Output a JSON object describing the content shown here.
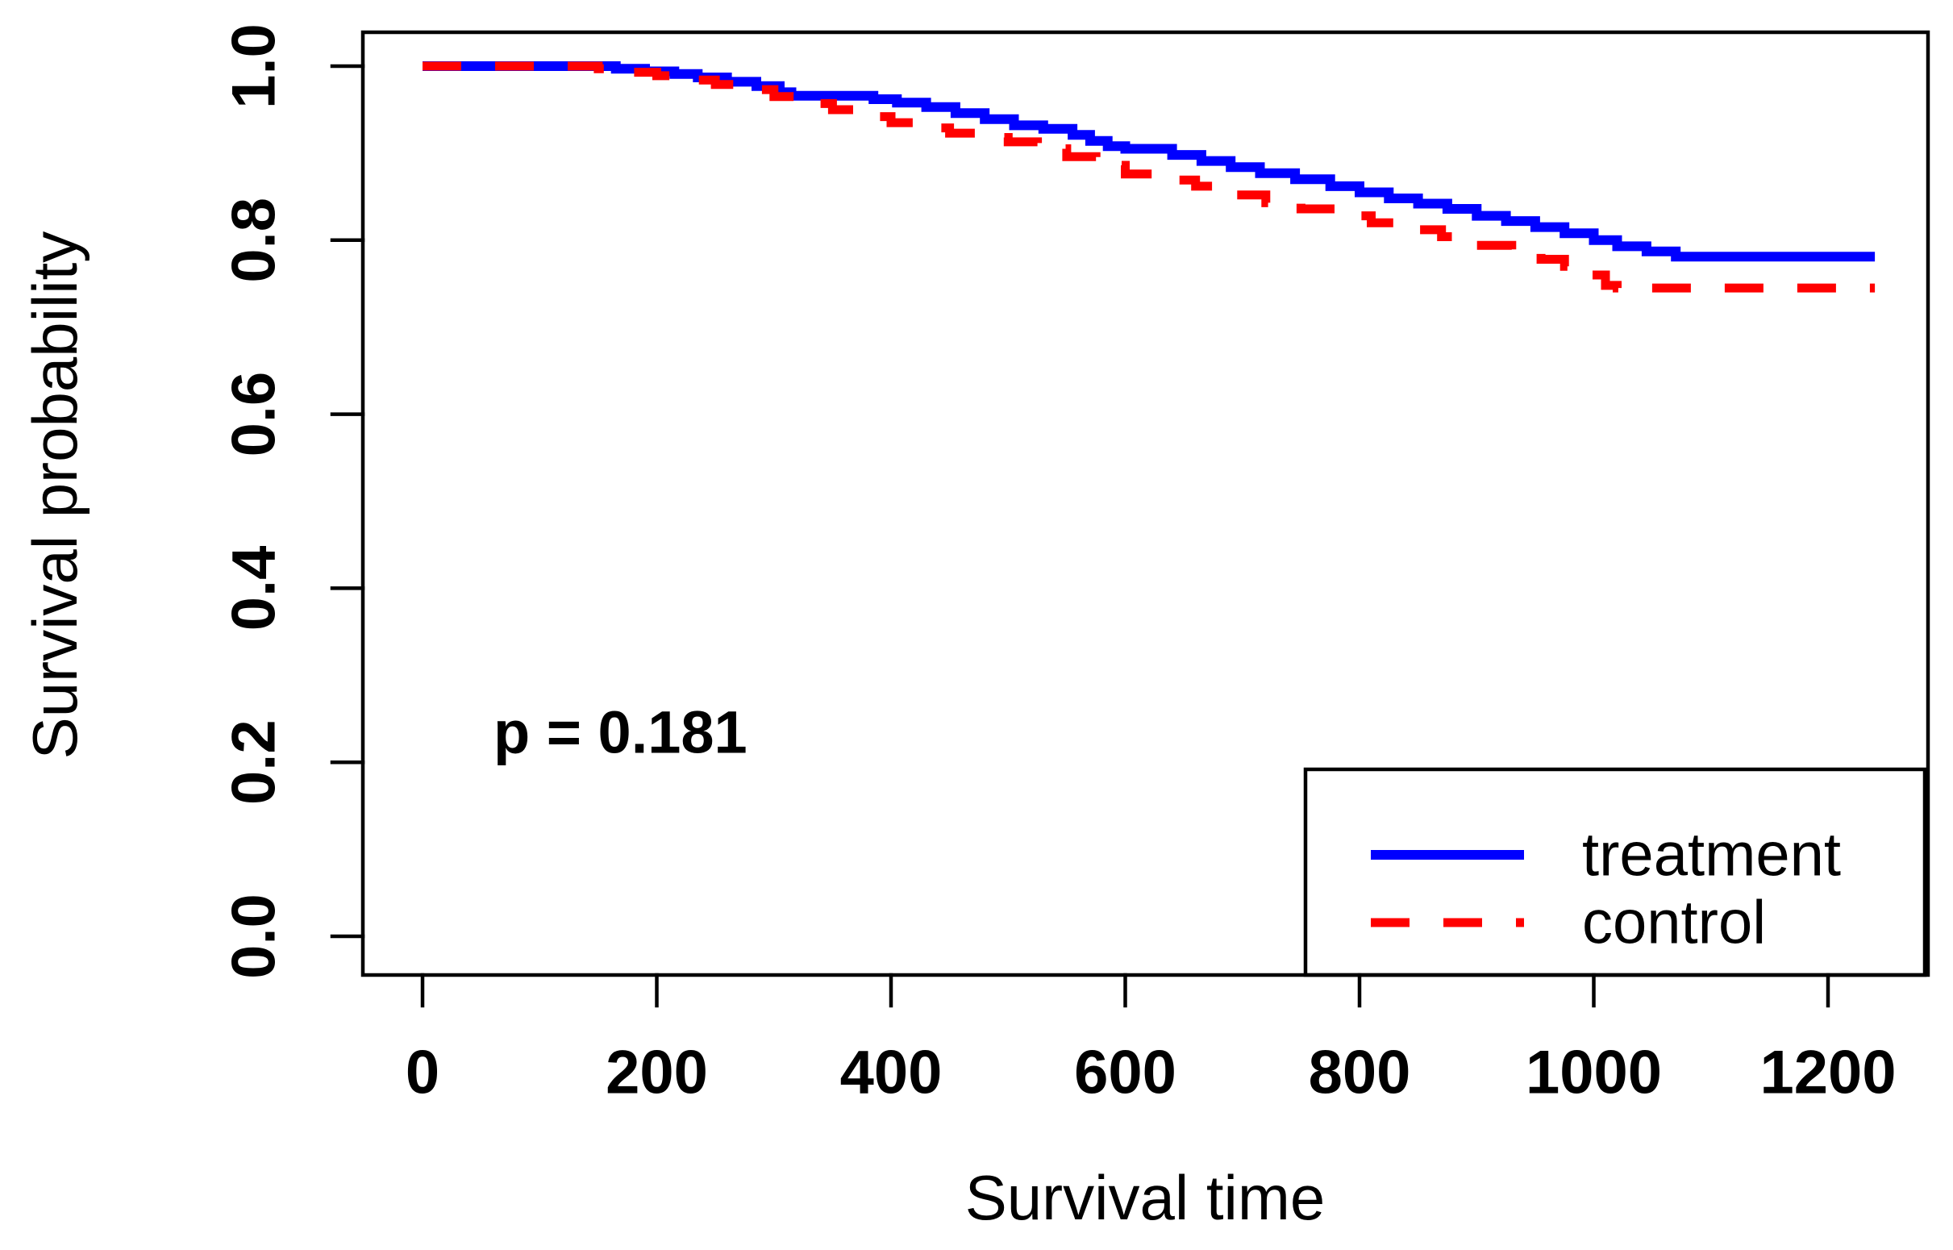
{
  "figure": {
    "background_color": "#ffffff",
    "axis_color": "#000000",
    "p_annotation": "p = 0.181",
    "p_value": 0.181
  },
  "chart_data": {
    "type": "line",
    "subtype": "kaplan-meier-step",
    "title": "",
    "xlabel": "Survival time",
    "ylabel": "Survival probability",
    "xlim": [
      0,
      1285
    ],
    "ylim": [
      0.0,
      1.0
    ],
    "grid": false,
    "x_ticks": [
      "0",
      "200",
      "400",
      "600",
      "800",
      "1000",
      "1200"
    ],
    "x_tick_values": [
      0,
      200,
      400,
      600,
      800,
      1000,
      1200
    ],
    "y_ticks": [
      "0.0",
      "0.2",
      "0.4",
      "0.6",
      "0.8",
      "1.0"
    ],
    "y_tick_values": [
      0,
      0.2,
      0.4,
      0.6,
      0.8,
      1.0
    ],
    "legend_position": "bottom-right",
    "annotation": {
      "text": "p = 0.181",
      "x": 230,
      "y": 0.23
    },
    "series": [
      {
        "name": "treatment",
        "color": "#0000ff",
        "line_style": "solid",
        "final_value": 0.781,
        "points": [
          [
            0,
            1.0
          ],
          [
            165,
            0.997
          ],
          [
            190,
            0.994
          ],
          [
            215,
            0.991
          ],
          [
            235,
            0.987
          ],
          [
            260,
            0.982
          ],
          [
            285,
            0.977
          ],
          [
            305,
            0.97
          ],
          [
            315,
            0.966
          ],
          [
            385,
            0.962
          ],
          [
            405,
            0.958
          ],
          [
            430,
            0.953
          ],
          [
            455,
            0.946
          ],
          [
            480,
            0.939
          ],
          [
            505,
            0.932
          ],
          [
            530,
            0.928
          ],
          [
            555,
            0.921
          ],
          [
            570,
            0.914
          ],
          [
            585,
            0.908
          ],
          [
            600,
            0.905
          ],
          [
            640,
            0.898
          ],
          [
            665,
            0.891
          ],
          [
            690,
            0.884
          ],
          [
            715,
            0.877
          ],
          [
            745,
            0.87
          ],
          [
            775,
            0.862
          ],
          [
            800,
            0.855
          ],
          [
            825,
            0.848
          ],
          [
            850,
            0.842
          ],
          [
            875,
            0.836
          ],
          [
            900,
            0.828
          ],
          [
            925,
            0.822
          ],
          [
            950,
            0.815
          ],
          [
            975,
            0.808
          ],
          [
            1000,
            0.8
          ],
          [
            1020,
            0.793
          ],
          [
            1045,
            0.787
          ],
          [
            1070,
            0.781
          ],
          [
            1240,
            0.781
          ]
        ]
      },
      {
        "name": "control",
        "color": "#ff0000",
        "line_style": "dashed",
        "final_value": 0.745,
        "points": [
          [
            0,
            1.0
          ],
          [
            150,
            0.997
          ],
          [
            175,
            0.993
          ],
          [
            200,
            0.989
          ],
          [
            225,
            0.984
          ],
          [
            250,
            0.979
          ],
          [
            275,
            0.973
          ],
          [
            300,
            0.965
          ],
          [
            325,
            0.957
          ],
          [
            350,
            0.95
          ],
          [
            375,
            0.942
          ],
          [
            400,
            0.935
          ],
          [
            425,
            0.929
          ],
          [
            450,
            0.923
          ],
          [
            475,
            0.918
          ],
          [
            500,
            0.913
          ],
          [
            525,
            0.905
          ],
          [
            550,
            0.896
          ],
          [
            575,
            0.886
          ],
          [
            600,
            0.876
          ],
          [
            630,
            0.869
          ],
          [
            660,
            0.862
          ],
          [
            690,
            0.852
          ],
          [
            720,
            0.843
          ],
          [
            750,
            0.836
          ],
          [
            780,
            0.828
          ],
          [
            810,
            0.82
          ],
          [
            840,
            0.812
          ],
          [
            870,
            0.804
          ],
          [
            900,
            0.794
          ],
          [
            930,
            0.786
          ],
          [
            955,
            0.778
          ],
          [
            975,
            0.77
          ],
          [
            995,
            0.76
          ],
          [
            1010,
            0.748
          ],
          [
            1020,
            0.745
          ],
          [
            1240,
            0.745
          ]
        ]
      }
    ]
  },
  "legend": {
    "items": [
      {
        "label": "treatment",
        "swatch": "solid-blue-line"
      },
      {
        "label": "control",
        "swatch": "dashed-red-line"
      }
    ]
  }
}
